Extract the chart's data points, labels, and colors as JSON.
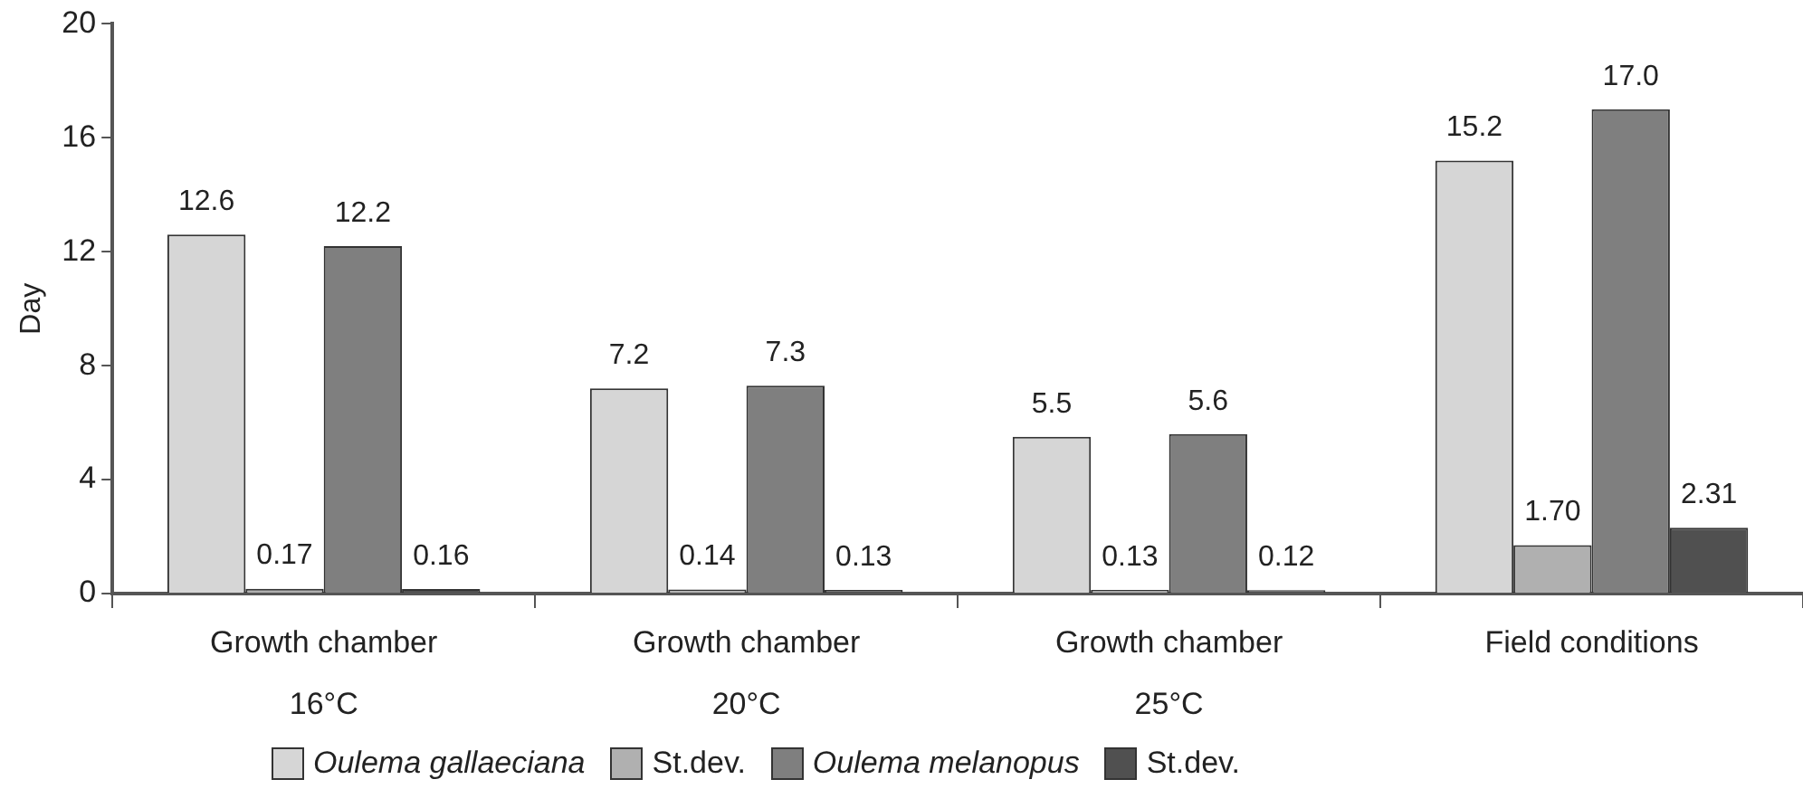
{
  "chart_data": {
    "type": "bar",
    "ylabel": "Day",
    "categories": [
      "Growth chamber\n16°C",
      "Growth chamber\n20°C",
      "Growth chamber\n25°C",
      "Field conditions"
    ],
    "series": [
      {
        "name": "Oulema gallaeciana",
        "color": "#d6d6d6",
        "values": [
          12.6,
          7.2,
          5.5,
          15.2
        ],
        "value_labels": [
          "12.6",
          "7.2",
          "5.5",
          "15.2"
        ]
      },
      {
        "name": "St.dev.",
        "color": "#b0b0b0",
        "values": [
          0.17,
          0.14,
          0.13,
          1.7
        ],
        "value_labels": [
          "0.17",
          "0.14",
          "0.13",
          "1.70"
        ]
      },
      {
        "name": "Oulema melanopus",
        "color": "#7f7f7f",
        "values": [
          12.2,
          7.3,
          5.6,
          17.0
        ],
        "value_labels": [
          "12.2",
          "7.3",
          "5.6",
          "17.0"
        ]
      },
      {
        "name": "St.dev.",
        "color": "#505050",
        "values": [
          0.16,
          0.13,
          0.12,
          2.31
        ],
        "value_labels": [
          "0.16",
          "0.13",
          "0.12",
          "2.31"
        ]
      }
    ],
    "ylim": [
      0,
      20
    ],
    "yticks": [
      0,
      4,
      8,
      12,
      16,
      20
    ],
    "grid": false,
    "legend": "bottom"
  }
}
